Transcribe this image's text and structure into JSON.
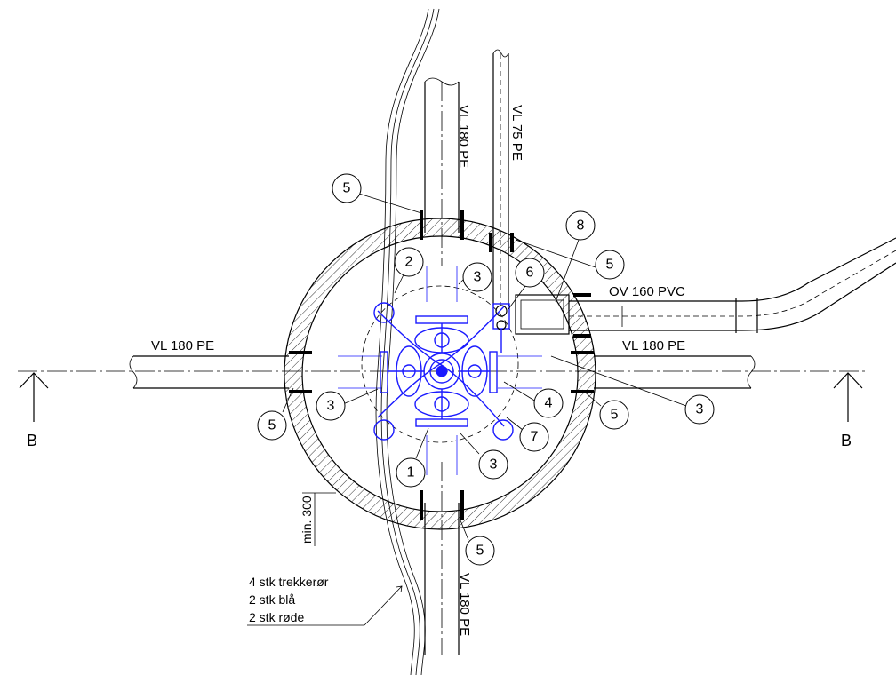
{
  "pipe_labels": {
    "vl180_top": "VL 180 PE",
    "vl75_top": "VL 75 PE",
    "ov160": "OV 160 PVC",
    "vl180_left": "VL 180 PE",
    "vl180_right": "VL 180 PE",
    "vl180_bottom": "VL 180 PE"
  },
  "section_markers": {
    "left": "B",
    "right": "B"
  },
  "dimension_label": "min. 300",
  "note_lines": [
    "4 stk trekkerør",
    "2 stk blå",
    "2 stk røde"
  ],
  "callouts": {
    "c5_top_left": "5",
    "c2": "2",
    "c3_top": "3",
    "c6": "6",
    "c8": "8",
    "c5_top_right": "5",
    "c3_left": "3",
    "c5_left": "5",
    "c4": "4",
    "c5_right": "5",
    "c3_right": "3",
    "c7": "7",
    "c1": "1",
    "c3_bottom": "3",
    "c5_bottom": "5"
  },
  "colors": {
    "equipment": "#1a1aff",
    "line": "#000000",
    "background": "#ffffff"
  }
}
